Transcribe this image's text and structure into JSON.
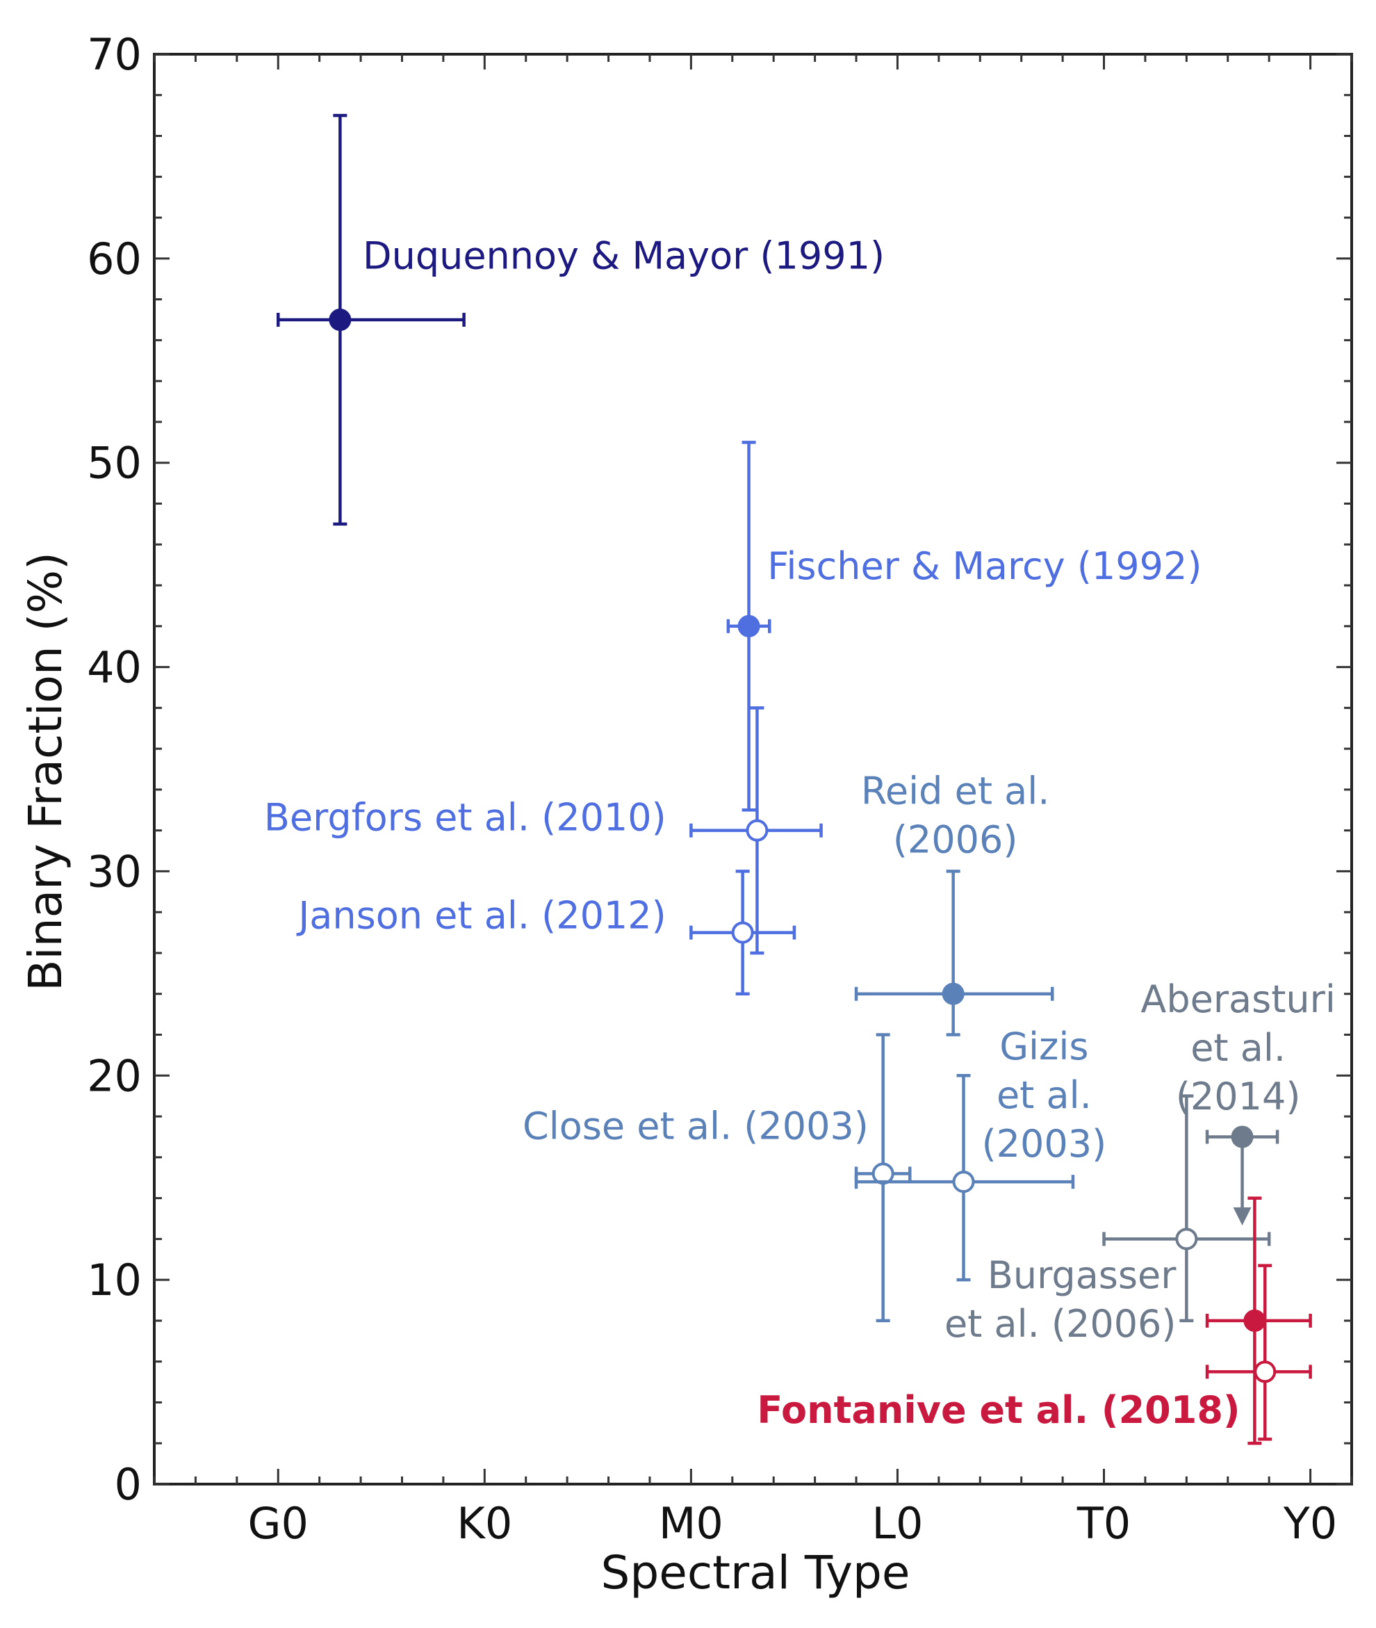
{
  "chart_data": {
    "type": "scatter",
    "title": "",
    "xlabel": "Spectral Type",
    "ylabel": "Binary Fraction (%)",
    "x_ticks": [
      {
        "label": "G0",
        "value": 0
      },
      {
        "label": "K0",
        "value": 10
      },
      {
        "label": "M0",
        "value": 20
      },
      {
        "label": "L0",
        "value": 30
      },
      {
        "label": "T0",
        "value": 40
      },
      {
        "label": "Y0",
        "value": 50
      }
    ],
    "y_ticks": [
      0,
      10,
      20,
      30,
      40,
      50,
      60,
      70
    ],
    "xlim": [
      -6,
      52
    ],
    "ylim": [
      0,
      70
    ],
    "x_unit_note": "",
    "grid": false,
    "series": [
      {
        "name": "Duquennoy & Mayor (1991)",
        "color": "#1c1a80",
        "filled": true,
        "bold": false,
        "x": 3.0,
        "y": 57,
        "xerr": [
          3.0,
          6.0
        ],
        "yerr": [
          10,
          10
        ],
        "label_anchor": "start",
        "label_pos": [
          4.1,
          59.5
        ],
        "label_lines": [
          "Duquennoy & Mayor (1991)"
        ]
      },
      {
        "name": "Fischer & Marcy (1992)",
        "color": "#4f6fe0",
        "filled": true,
        "bold": false,
        "x": 22.8,
        "y": 42,
        "xerr": [
          1.0,
          1.0
        ],
        "yerr": [
          9,
          9
        ],
        "label_anchor": "start",
        "label_pos": [
          23.7,
          44.3
        ],
        "label_lines": [
          "Fischer & Marcy (1992)"
        ]
      },
      {
        "name": "Bergfors et al. (2010)",
        "color": "#4f6fe0",
        "filled": false,
        "bold": false,
        "x": 23.2,
        "y": 32,
        "xerr": [
          3.2,
          3.1
        ],
        "yerr": [
          6,
          6
        ],
        "label_anchor": "end",
        "label_pos": [
          18.8,
          32.0
        ],
        "label_lines": [
          "Bergfors et al. (2010)"
        ]
      },
      {
        "name": "Janson et al. (2012)",
        "color": "#4f6fe0",
        "filled": false,
        "bold": false,
        "x": 22.5,
        "y": 27,
        "xerr": [
          2.5,
          2.5
        ],
        "yerr": [
          3,
          3
        ],
        "label_anchor": "end",
        "label_pos": [
          18.8,
          27.2
        ],
        "label_lines": [
          "Janson et al. (2012)"
        ]
      },
      {
        "name": "Reid et al. (2006)",
        "color": "#5b82b8",
        "filled": true,
        "bold": false,
        "x": 32.7,
        "y": 24,
        "xerr": [
          4.7,
          4.8
        ],
        "yerr": [
          2,
          6
        ],
        "label_anchor": "middle",
        "label_pos": [
          32.8,
          33.3
        ],
        "label_lines": [
          "Reid et al.",
          "(2006)"
        ]
      },
      {
        "name": "Close et al. (2003)",
        "color": "#5b82b8",
        "filled": false,
        "bold": false,
        "x": 29.3,
        "y": 15.2,
        "xerr": [
          1.3,
          1.3
        ],
        "yerr": [
          7.2,
          6.8
        ],
        "label_anchor": "end",
        "label_pos": [
          28.6,
          16.9
        ],
        "label_lines": [
          "Close et al. (2003)"
        ]
      },
      {
        "name": "Gizis et al. (2003)",
        "color": "#5b82b8",
        "filled": false,
        "bold": false,
        "x": 33.2,
        "y": 14.8,
        "xerr": [
          5.2,
          5.3
        ],
        "yerr": [
          4.8,
          5.2
        ],
        "label_anchor": "middle",
        "label_pos": [
          37.1,
          20.8
        ],
        "label_lines": [
          "Gizis",
          "et al.",
          "(2003)"
        ]
      },
      {
        "name": "Aberasturi et al. (2014)",
        "color": "#6e7b8c",
        "filled": true,
        "bold": false,
        "x": 46.7,
        "y": 17,
        "xerr": [
          1.7,
          1.7
        ],
        "yerr": [
          0,
          0
        ],
        "upper_limit": true,
        "label_anchor": "middle",
        "label_pos": [
          46.5,
          23.1
        ],
        "label_lines": [
          "Aberasturi",
          "et al.",
          "(2014)"
        ]
      },
      {
        "name": "Burgasser et al. (2006)",
        "color": "#6e7b8c",
        "filled": false,
        "bold": false,
        "x": 44.0,
        "y": 12,
        "xerr": [
          4.0,
          4.0
        ],
        "yerr": [
          4,
          7
        ],
        "label_anchor": "end",
        "label_pos": [
          43.5,
          9.6
        ],
        "label_lines": [
          "Burgasser",
          "et al. (2006)"
        ]
      },
      {
        "name": "Fontanive et al. (2018)",
        "color": "#c9193f",
        "filled": true,
        "bold": false,
        "x": 47.3,
        "y": 8,
        "xerr": [
          2.3,
          2.7
        ],
        "yerr": [
          6,
          6
        ],
        "label_anchor": "end",
        "label_pos": [
          46.6,
          3.0
        ],
        "label_lines": [
          "Fontanive et al. (2018)"
        ]
      },
      {
        "name": "Fontanive et al. (2018) open",
        "color": "#c9193f",
        "filled": false,
        "bold": false,
        "x": 47.8,
        "y": 5.5,
        "xerr": [
          2.8,
          2.2
        ],
        "yerr": [
          3.3,
          5.2
        ],
        "label_anchor": "end",
        "label_pos": [
          0,
          0
        ],
        "label_lines": []
      }
    ],
    "highlight_label": {
      "text": "Fontanive et al. (2018)",
      "color": "#c9193f",
      "bold": true
    }
  }
}
